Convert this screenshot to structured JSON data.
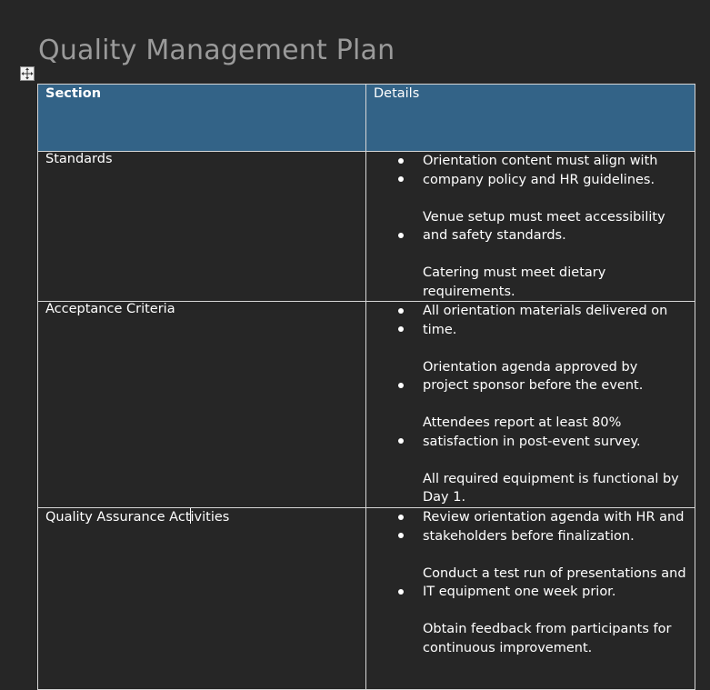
{
  "document": {
    "title": "Quality Management Plan"
  },
  "table": {
    "headers": {
      "section": "Section",
      "details": "Details"
    },
    "rows": [
      {
        "section": "Standards",
        "details": [
          "Orientation content must align with company policy and HR guidelines.",
          "Venue setup must meet accessibility and safety standards.",
          "Catering must meet dietary requirements."
        ]
      },
      {
        "section": "Acceptance Criteria",
        "details": [
          "All orientation materials delivered on time.",
          "Orientation agenda approved by project sponsor before the event.",
          "Attendees report at least 80% satisfaction in post-event survey.",
          "All required equipment is functional by Day 1."
        ]
      },
      {
        "section": "Quality Assurance Activities",
        "section_before_caret": "Quality Assurance Act",
        "section_after_caret": "ivities",
        "details": [
          "Review orientation agenda with HR and stakeholders before finalization.",
          "Conduct a test run of presentations and IT equipment one week prior.",
          "Obtain feedback from participants for continuous improvement."
        ]
      }
    ]
  },
  "colors": {
    "background": "#262626",
    "header_fill": "#336387",
    "title_text": "#9a9a9a",
    "border": "#d6d6d6"
  },
  "icons": {
    "table_move_handle": "move-arrows-icon",
    "bullet": "bullet-icon"
  }
}
